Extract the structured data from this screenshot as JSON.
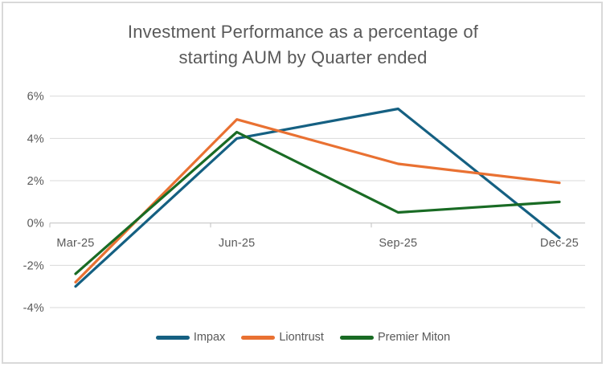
{
  "window": {
    "background": "#FFFFFF",
    "border_color": "#D9D9D9"
  },
  "chart_data": {
    "type": "line",
    "title": "Investment Performance as a percentage of starting AUM by Quarter ended",
    "title_lines": [
      "Investment Performance as a percentage of",
      "starting AUM by Quarter ended"
    ],
    "categories": [
      "Mar-25",
      "Jun-25",
      "Sep-25",
      "Dec-25"
    ],
    "series": [
      {
        "name": "Impax",
        "color": "#156082",
        "values": [
          -3.0,
          4.0,
          5.4,
          -0.7
        ]
      },
      {
        "name": "Liontrust",
        "color": "#E97132",
        "values": [
          -2.8,
          4.9,
          2.8,
          1.9
        ]
      },
      {
        "name": "Premier Miton",
        "color": "#196B24",
        "values": [
          -2.4,
          4.3,
          0.5,
          1.0
        ]
      }
    ],
    "ylim": [
      -4,
      6
    ],
    "ytick_values": [
      6,
      4,
      2,
      0,
      -2,
      -4
    ],
    "ytick_labels": [
      "6%",
      "4%",
      "2%",
      "0%",
      "-2%",
      "-4%"
    ],
    "xlabel": "",
    "ylabel": "",
    "grid": true,
    "legend_position": "bottom",
    "text_color": "#595959",
    "gridline_color": "#D9D9D9",
    "axis_color": "#BFBFBF"
  }
}
